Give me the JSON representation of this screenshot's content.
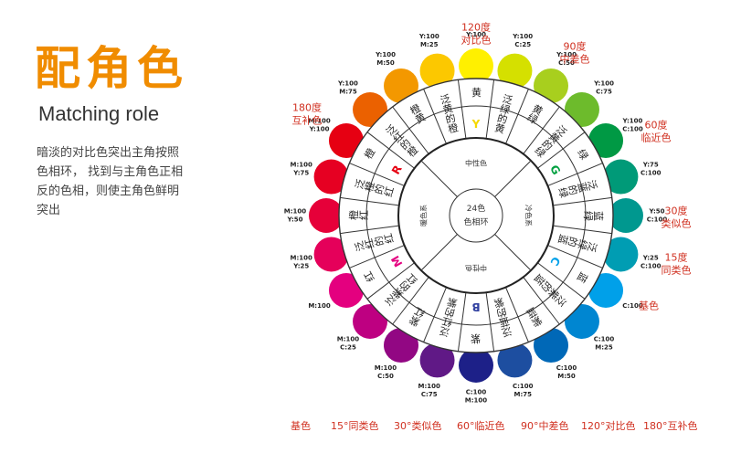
{
  "title_cn": "配角色",
  "title_en": "Matching role",
  "description": [
    "暗淡的对比色突出主角按照",
    "色相环，   找到与主角色正相",
    "反的色相，则使主角色鲜明",
    "突出"
  ],
  "center": {
    "line1": "24色",
    "line2": "色相环"
  },
  "inner_ring": [
    "暖色系",
    "中性色",
    "冷色系",
    "中性色"
  ],
  "colors": [
    {
      "name": "黄",
      "hex": "#fff000",
      "code": [
        "Y:100"
      ],
      "letter": "Y",
      "letter_color": "#f5d800"
    },
    {
      "name": "泛绿的黄",
      "hex": "#d5e000",
      "code": [
        "Y:100",
        "C:25"
      ]
    },
    {
      "name": "黄绿",
      "hex": "#a8cf1e",
      "code": [
        "Y:100",
        "C:50"
      ]
    },
    {
      "name": "泛黄的绿",
      "hex": "#6dbb2c",
      "code": [
        "Y:100",
        "C:75"
      ]
    },
    {
      "name": "绿",
      "hex": "#009944",
      "code": [
        "Y:100",
        "C:100"
      ],
      "letter": "G",
      "letter_color": "#00a040"
    },
    {
      "name": "泛蓝的绿",
      "hex": "#009a78",
      "code": [
        "Y:75",
        "C:100"
      ]
    },
    {
      "name": "蓝绿",
      "hex": "#00988f",
      "code": [
        "Y:50",
        "C:100"
      ]
    },
    {
      "name": "泛绿的蓝",
      "hex": "#009db3",
      "code": [
        "Y:25",
        "C:100"
      ]
    },
    {
      "name": "蓝",
      "hex": "#00a0e9",
      "code": [
        "C:100"
      ],
      "letter": "C",
      "letter_color": "#00a0e9"
    },
    {
      "name": "泛紫的蓝",
      "hex": "#0086d1",
      "code": [
        "C:100",
        "M:25"
      ]
    },
    {
      "name": "紫蓝",
      "hex": "#0068b7",
      "code": [
        "C:100",
        "M:50"
      ]
    },
    {
      "name": "泛蓝的紫",
      "hex": "#1d4ea0",
      "code": [
        "C:100",
        "M:75"
      ]
    },
    {
      "name": "紫",
      "hex": "#1d2088",
      "code": [
        "C:100",
        "M:100"
      ],
      "letter": "B",
      "letter_color": "#3040a0"
    },
    {
      "name": "泛红的紫",
      "hex": "#601986",
      "code": [
        "M:100",
        "C:75"
      ]
    },
    {
      "name": "紫红",
      "hex": "#920783",
      "code": [
        "M:100",
        "C:50"
      ]
    },
    {
      "name": "泛紫的红",
      "hex": "#be0081",
      "code": [
        "M:100",
        "C:25"
      ]
    },
    {
      "name": "红",
      "hex": "#e4007f",
      "code": [
        "M:100"
      ],
      "letter": "M",
      "letter_color": "#e4007f"
    },
    {
      "name": "泛红的红",
      "hex": "#e5005a",
      "code": [
        "M:100",
        "Y:25"
      ]
    },
    {
      "name": "橙红",
      "hex": "#e60039",
      "code": [
        "M:100",
        "Y:50"
      ]
    },
    {
      "name": "泛橙的红",
      "hex": "#e60022",
      "code": [
        "M:100",
        "Y:75"
      ]
    },
    {
      "name": "橙",
      "hex": "#e60012",
      "code": [
        "M:100",
        "Y:100"
      ],
      "letter": "R",
      "letter_color": "#e60012"
    },
    {
      "name": "泛红的橙",
      "hex": "#eb6100",
      "code": [
        "Y:100",
        "M:75"
      ]
    },
    {
      "name": "橙黄",
      "hex": "#f39800",
      "code": [
        "Y:100",
        "M:50"
      ]
    },
    {
      "name": "泛黄的橙",
      "hex": "#fcc800",
      "code": [
        "Y:100",
        "M:25"
      ]
    }
  ],
  "annotations": [
    {
      "text": [
        "120度",
        "对比色"
      ]
    },
    {
      "text": [
        "90度",
        "中差色"
      ]
    },
    {
      "text": [
        "60度",
        "临近色"
      ]
    },
    {
      "text": [
        "30度",
        "类似色"
      ]
    },
    {
      "text": [
        "15度",
        "同类色"
      ]
    },
    {
      "text": [
        "基色"
      ]
    },
    {
      "text": [
        "180度",
        "互补色"
      ]
    }
  ],
  "bottom_labels": [
    "基色",
    "15°同类色",
    "30°类似色",
    "60°临近色",
    "90°中差色",
    "120°对比色",
    "180°互补色"
  ],
  "accent_color": "#f08c00",
  "annotation_color": "#d03020"
}
